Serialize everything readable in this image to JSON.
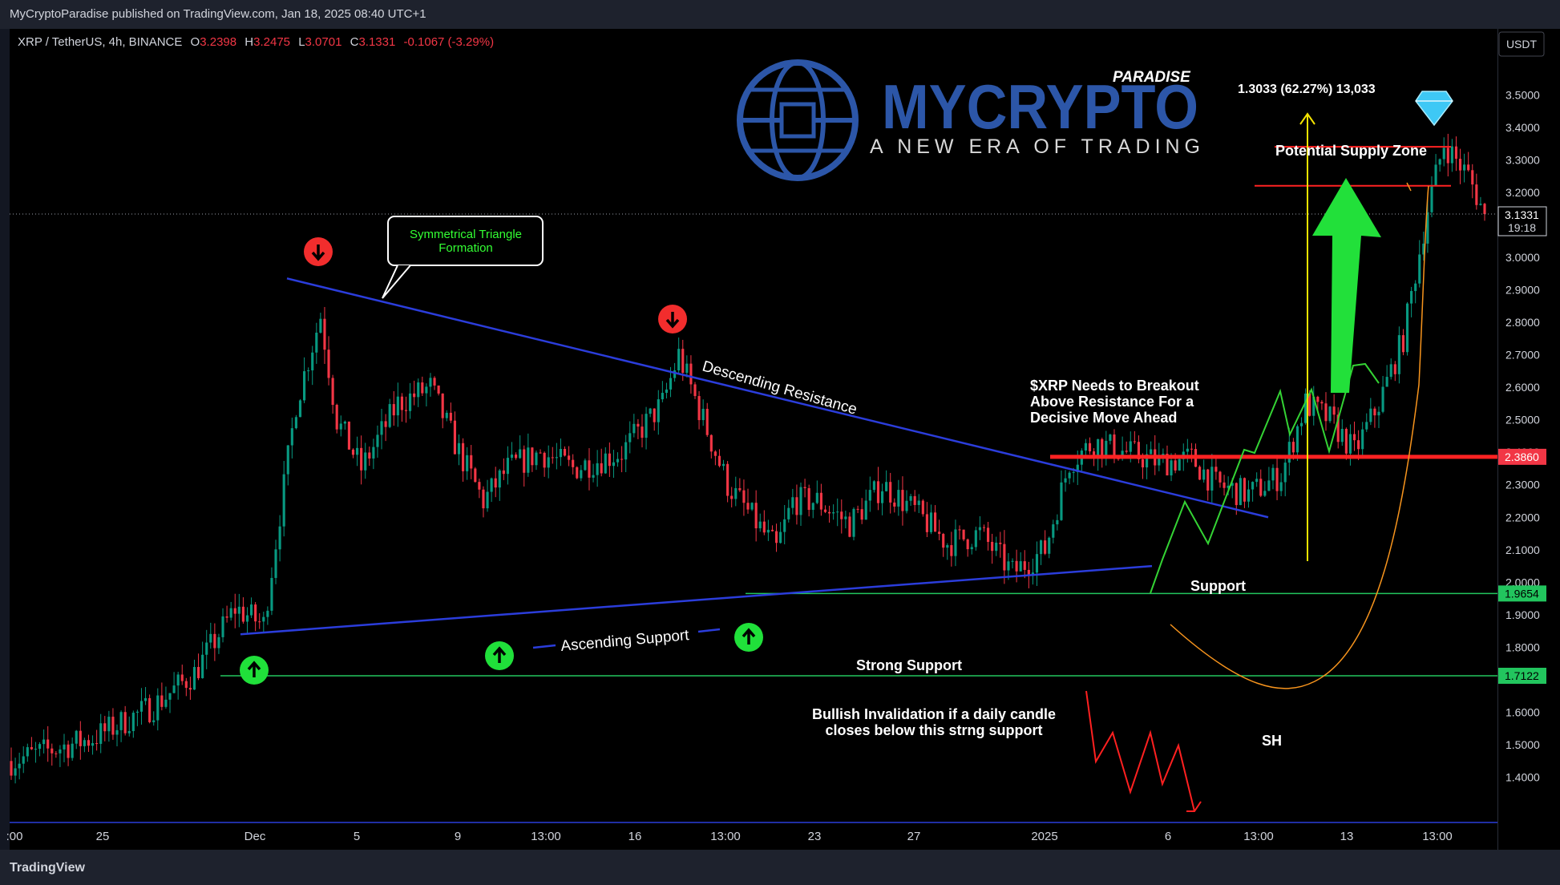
{
  "header": {
    "publisher": "MyCryptoParadise published on TradingView.com, Jan 18, 2025 08:40 UTC+1"
  },
  "ohlc": {
    "symbol": "XRP / TetherUS, 4h, BINANCE",
    "o_label": "O",
    "o": "3.2398",
    "h_label": "H",
    "h": "3.2475",
    "l_label": "L",
    "l": "3.0701",
    "c_label": "C",
    "c": "3.1331",
    "change": "-0.1067 (-3.29%)"
  },
  "logo": {
    "brand": "MYCRYPTO",
    "sub": "PARADISE",
    "tagline": "A NEW ERA OF TRADING"
  },
  "footer": {
    "brand": "TradingView"
  },
  "colors": {
    "background": "#000000",
    "up": "#089981",
    "down": "#f23645",
    "trendline": "#2b3ddb",
    "support": "#22c55e",
    "resistance": "#ff2222"
  },
  "chart_data": {
    "type": "candlestick",
    "currency": "USDT",
    "y_ticks": [
      "3.5000",
      "3.4000",
      "3.3000",
      "3.2000",
      "3.1000",
      "3.0000",
      "2.9000",
      "2.8000",
      "2.7000",
      "2.6000",
      "2.5000",
      "2.4000",
      "2.3000",
      "2.2000",
      "2.1000",
      "2.0000",
      "1.9000",
      "1.8000",
      "1.7000",
      "1.6000",
      "1.5000",
      "1.4000"
    ],
    "ylim": [
      1.32,
      3.55
    ],
    "x_ticks": [
      ":00",
      "25",
      "Dec",
      "5",
      "9",
      "13:00",
      "16",
      "13:00",
      "23",
      "27",
      "2025",
      "6",
      "13:00",
      "13",
      "13:00"
    ],
    "price_labels": [
      {
        "value": 3.1331,
        "label": "3.1331",
        "sub": "19:18",
        "color": "#ffffff"
      },
      {
        "value": 2.386,
        "label": "2.3860",
        "color": "#f23645"
      },
      {
        "value": 1.9654,
        "label": "1.9654",
        "color": "#22c55e"
      },
      {
        "value": 1.7122,
        "label": "1.7122",
        "color": "#22c55e"
      }
    ],
    "levels": [
      {
        "name": "resistance",
        "value": 2.386
      },
      {
        "name": "support",
        "value": 1.9654
      },
      {
        "name": "strong-support",
        "value": 1.7122
      },
      {
        "name": "supply-top",
        "value": 3.34
      },
      {
        "name": "supply-bottom",
        "value": 3.22
      }
    ],
    "anchors": [
      {
        "x": 0,
        "y": 1.45
      },
      {
        "x": 20,
        "y": 1.52
      },
      {
        "x": 35,
        "y": 1.62
      },
      {
        "x": 45,
        "y": 1.72
      },
      {
        "x": 55,
        "y": 1.92
      },
      {
        "x": 62,
        "y": 1.87
      },
      {
        "x": 70,
        "y": 2.55
      },
      {
        "x": 76,
        "y": 2.82
      },
      {
        "x": 80,
        "y": 2.5
      },
      {
        "x": 86,
        "y": 2.35
      },
      {
        "x": 95,
        "y": 2.55
      },
      {
        "x": 103,
        "y": 2.6
      },
      {
        "x": 110,
        "y": 2.4
      },
      {
        "x": 116,
        "y": 2.25
      },
      {
        "x": 122,
        "y": 2.35
      },
      {
        "x": 130,
        "y": 2.4
      },
      {
        "x": 138,
        "y": 2.35
      },
      {
        "x": 150,
        "y": 2.4
      },
      {
        "x": 160,
        "y": 2.55
      },
      {
        "x": 164,
        "y": 2.7
      },
      {
        "x": 170,
        "y": 2.5
      },
      {
        "x": 176,
        "y": 2.3
      },
      {
        "x": 182,
        "y": 2.2
      },
      {
        "x": 188,
        "y": 2.1
      },
      {
        "x": 192,
        "y": 2.25
      },
      {
        "x": 198,
        "y": 2.25
      },
      {
        "x": 206,
        "y": 2.18
      },
      {
        "x": 214,
        "y": 2.3
      },
      {
        "x": 222,
        "y": 2.22
      },
      {
        "x": 230,
        "y": 2.12
      },
      {
        "x": 238,
        "y": 2.15
      },
      {
        "x": 246,
        "y": 2.03
      },
      {
        "x": 254,
        "y": 2.1
      },
      {
        "x": 260,
        "y": 2.37
      },
      {
        "x": 266,
        "y": 2.43
      },
      {
        "x": 274,
        "y": 2.4
      },
      {
        "x": 282,
        "y": 2.37
      },
      {
        "x": 290,
        "y": 2.38
      },
      {
        "x": 296,
        "y": 2.3
      },
      {
        "x": 304,
        "y": 2.27
      },
      {
        "x": 312,
        "y": 2.33
      },
      {
        "x": 318,
        "y": 2.55
      },
      {
        "x": 324,
        "y": 2.5
      },
      {
        "x": 330,
        "y": 2.4
      },
      {
        "x": 336,
        "y": 2.55
      },
      {
        "x": 342,
        "y": 2.75
      },
      {
        "x": 348,
        "y": 3.15
      },
      {
        "x": 352,
        "y": 3.35
      },
      {
        "x": 358,
        "y": 3.25
      },
      {
        "x": 362,
        "y": 3.1331
      }
    ],
    "n_candles": 363,
    "annotations": {
      "triangle": "Symmetrical Triangle\nFormation",
      "descending": "Descending Resistance",
      "ascending": "Ascending Support",
      "breakout": "$XRP Needs to Breakout\nAbove Resistance For a\nDecisive Move Ahead",
      "support": "Support",
      "strong_support": "Strong Support",
      "invalidation": "Bullish Invalidation if a daily candle\ncloses below this strng support",
      "sh": "SH",
      "supply": "Potential Supply Zone",
      "measure": "1.3033 (62.27%) 13,033"
    }
  }
}
